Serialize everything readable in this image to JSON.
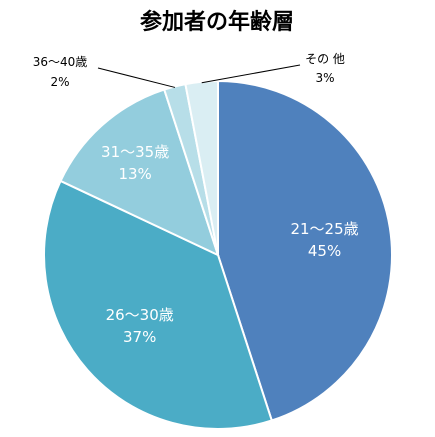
{
  "chart_data": {
    "type": "pie",
    "title": "参加者の年齢層",
    "slices": [
      {
        "label": "21～25歳",
        "value": 45,
        "display": "45%",
        "color": "#4f81bd"
      },
      {
        "label": "26～30歳",
        "value": 37,
        "display": "37%",
        "color": "#4bacc6"
      },
      {
        "label": "31～35歳",
        "value": 13,
        "display": "13%",
        "color": "#93cddd"
      },
      {
        "label": "36～40歳",
        "value": 2,
        "display": "2%",
        "color": "#b7dee8"
      },
      {
        "label": "その 他",
        "value": 3,
        "display": "3%",
        "color": "#daeef3"
      }
    ]
  }
}
